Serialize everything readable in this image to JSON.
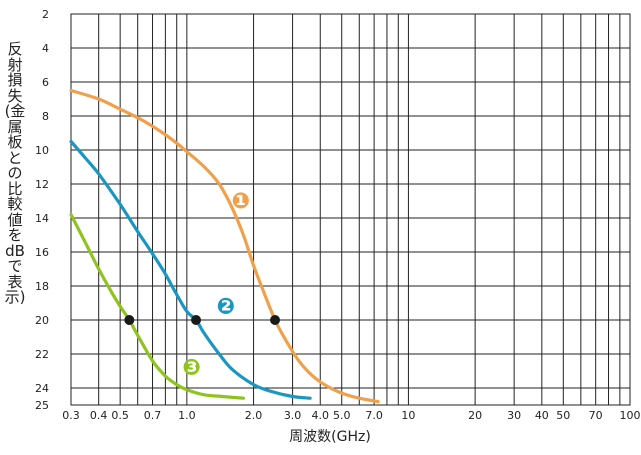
{
  "chart_data": {
    "type": "line",
    "xlabel": "周波数(GHz)",
    "ylabel": "反射損失(金属板との比較値をdBで表示)",
    "x_scale": "log",
    "xlim": [
      0.3,
      100
    ],
    "ylim": [
      2,
      25
    ],
    "y_inverted": true,
    "grid": true,
    "x_ticks": [
      {
        "v": 0.3,
        "label": "0.3"
      },
      {
        "v": 0.4,
        "label": "0.4"
      },
      {
        "v": 0.5,
        "label": "0.5"
      },
      {
        "v": 0.7,
        "label": "0.7"
      },
      {
        "v": 1.0,
        "label": "1.0"
      },
      {
        "v": 2.0,
        "label": "2.0"
      },
      {
        "v": 3.0,
        "label": "3.0"
      },
      {
        "v": 4.0,
        "label": "4.0"
      },
      {
        "v": 5.0,
        "label": "5.0"
      },
      {
        "v": 7.0,
        "label": "7.0"
      },
      {
        "v": 10,
        "label": "10"
      },
      {
        "v": 20,
        "label": "20"
      },
      {
        "v": 30,
        "label": "30"
      },
      {
        "v": 40,
        "label": "40"
      },
      {
        "v": 50,
        "label": "50"
      },
      {
        "v": 70,
        "label": "70"
      },
      {
        "v": 100,
        "label": "100"
      }
    ],
    "x_gridlines": [
      0.3,
      0.4,
      0.5,
      0.6,
      0.7,
      0.8,
      0.9,
      1,
      2,
      3,
      4,
      5,
      6,
      7,
      8,
      9,
      10,
      20,
      30,
      40,
      50,
      60,
      70,
      80,
      90,
      100
    ],
    "y_ticks": [
      2,
      4,
      6,
      8,
      10,
      12,
      14,
      16,
      18,
      20,
      22,
      24,
      25
    ],
    "series": [
      {
        "label": "❶",
        "color": "#f0a04b",
        "x": [
          0.3,
          0.4,
          0.5,
          0.6,
          0.7,
          0.8,
          0.9,
          1.0,
          1.2,
          1.4,
          1.6,
          1.8,
          2.0,
          2.2,
          2.5,
          2.8,
          3.2,
          3.7,
          4.3,
          5.0,
          6.0,
          7.3
        ],
        "y": [
          6.5,
          7.0,
          7.6,
          8.1,
          8.6,
          9.1,
          9.6,
          10.1,
          11.0,
          12.0,
          13.4,
          15.0,
          16.8,
          18.2,
          20.0,
          21.2,
          22.4,
          23.3,
          23.9,
          24.3,
          24.6,
          24.8
        ]
      },
      {
        "label": "❷",
        "color": "#1a96c2",
        "x": [
          0.3,
          0.35,
          0.4,
          0.5,
          0.6,
          0.7,
          0.8,
          0.9,
          1.0,
          1.1,
          1.2,
          1.4,
          1.6,
          2.0,
          2.4,
          3.0,
          3.6
        ],
        "y": [
          9.5,
          10.5,
          11.4,
          13.2,
          14.8,
          16.1,
          17.3,
          18.5,
          19.5,
          20.0,
          20.8,
          22.0,
          22.9,
          23.8,
          24.2,
          24.5,
          24.6
        ]
      },
      {
        "label": "❸",
        "color": "#8fc31f",
        "x": [
          0.3,
          0.35,
          0.4,
          0.45,
          0.5,
          0.55,
          0.6,
          0.7,
          0.8,
          0.9,
          1.0,
          1.2,
          1.45,
          1.8
        ],
        "y": [
          13.8,
          15.5,
          17.0,
          18.2,
          19.2,
          20.0,
          20.9,
          22.4,
          23.3,
          23.8,
          24.1,
          24.4,
          24.5,
          24.6
        ]
      }
    ],
    "markers": [
      {
        "x": 0.55,
        "y": 20
      },
      {
        "x": 1.1,
        "y": 20
      },
      {
        "x": 2.5,
        "y": 20
      }
    ],
    "annotations": [
      {
        "text": "❶",
        "series": 0,
        "x": 1.75,
        "y": 13.0
      },
      {
        "text": "❷",
        "series": 1,
        "x": 1.5,
        "y": 19.2
      },
      {
        "text": "❸",
        "series": 2,
        "x": 1.05,
        "y": 22.8
      }
    ]
  }
}
